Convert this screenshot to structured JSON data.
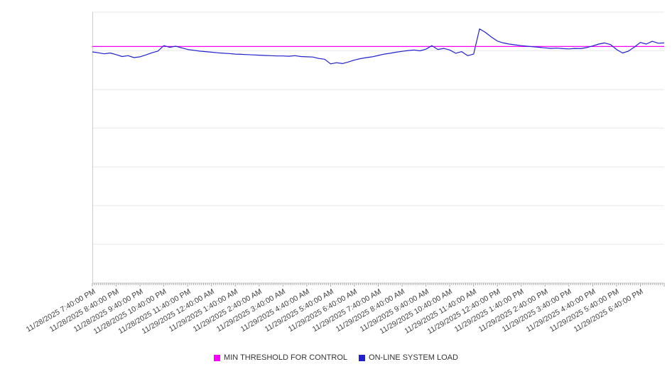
{
  "chart_data": {
    "type": "line",
    "title": "",
    "xlabel": "",
    "ylabel": "",
    "y_axis_labels": "none",
    "ylim": [
      0,
      100
    ],
    "grid": "horizontal",
    "gridline_divisions": 7,
    "legend_position": "bottom-center",
    "x_label_rotation_deg": -30,
    "x_minor_ticks_per_hour": 12,
    "x_tick_labels": [
      "11/28/2025 7:40:00 PM",
      "11/28/2025 8:40:00 PM",
      "11/28/2025 9:40:00 PM",
      "11/28/2025 10:40:00 PM",
      "11/28/2025 11:40:00 PM",
      "11/29/2025 12:40:00 AM",
      "11/29/2025 1:40:00 AM",
      "11/29/2025 2:40:00 AM",
      "11/29/2025 3:40:00 AM",
      "11/29/2025 4:40:00 AM",
      "11/29/2025 5:40:00 AM",
      "11/29/2025 6:40:00 AM",
      "11/29/2025 7:40:00 AM",
      "11/29/2025 8:40:00 AM",
      "11/29/2025 9:40:00 AM",
      "11/29/2025 10:40:00 AM",
      "11/29/2025 11:40:00 AM",
      "11/29/2025 12:40:00 PM",
      "11/29/2025 1:40:00 PM",
      "11/29/2025 2:40:00 PM",
      "11/29/2025 3:40:00 PM",
      "11/29/2025 4:40:00 PM",
      "11/29/2025 5:40:00 PM",
      "11/29/2025 6:40:00 PM"
    ],
    "series": [
      {
        "name": "MIN THRESHOLD FOR CONTROL",
        "color": "#ff00ff",
        "style": "threshold-line",
        "value": 87.3
      },
      {
        "name": "ON-LINE SYSTEM LOAD",
        "color": "#2020cd",
        "style": "line",
        "sample_interval_minutes": 15,
        "values": [
          85.3,
          85.0,
          84.6,
          84.9,
          84.3,
          83.6,
          83.9,
          83.2,
          83.5,
          84.2,
          85.0,
          85.6,
          87.6,
          87.0,
          87.4,
          86.8,
          86.2,
          85.9,
          85.6,
          85.4,
          85.2,
          85.0,
          84.8,
          84.7,
          84.5,
          84.4,
          84.3,
          84.2,
          84.1,
          84.0,
          83.9,
          83.8,
          83.8,
          83.7,
          83.9,
          83.6,
          83.5,
          83.4,
          82.9,
          82.6,
          80.9,
          81.3,
          81.0,
          81.6,
          82.3,
          82.8,
          83.2,
          83.5,
          84.0,
          84.5,
          84.8,
          85.2,
          85.5,
          85.8,
          86.0,
          85.7,
          86.3,
          87.6,
          86.2,
          86.6,
          86.0,
          84.8,
          85.4,
          83.9,
          84.5,
          93.8,
          92.5,
          90.8,
          89.3,
          88.6,
          88.2,
          87.9,
          87.6,
          87.4,
          87.2,
          87.0,
          86.8,
          86.6,
          86.7,
          86.5,
          86.4,
          86.6,
          86.5,
          86.9,
          87.5,
          88.2,
          88.6,
          88.0,
          86.2,
          84.9,
          85.6,
          87.1,
          88.8,
          88.2,
          89.2,
          88.5,
          88.6
        ]
      }
    ]
  },
  "colors": {
    "background": "#ffffff",
    "gridline": "#e8e8e8",
    "axis": "#cccccc",
    "tick": "#a8a8a8",
    "axis_label_text": "#3d3d3d",
    "legend_text": "#333333",
    "threshold": "#ff00ff",
    "series_line": "#2020cd"
  },
  "legend": {
    "items": [
      {
        "label": "MIN THRESHOLD FOR CONTROL",
        "color": "#ff00ff"
      },
      {
        "label": "ON-LINE SYSTEM LOAD",
        "color": "#2020cd"
      }
    ]
  }
}
